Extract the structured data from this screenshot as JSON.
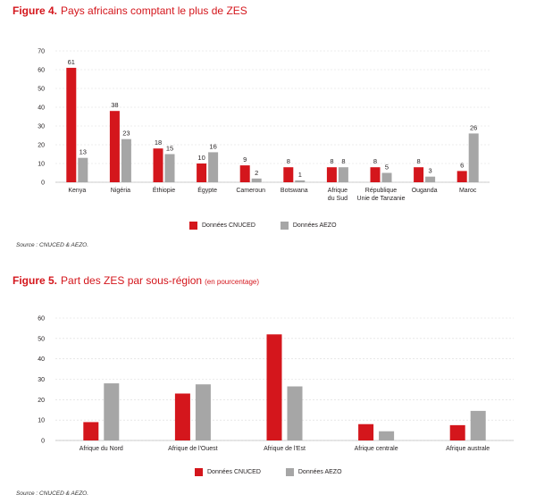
{
  "figure4": {
    "number": "Figure 4.",
    "title": "Pays africains comptant le plus de ZES",
    "source": "Source : CNUCED & AEZO."
  },
  "figure5": {
    "number": "Figure 5.",
    "title": "Part des ZES par sous-région",
    "subtitle": "(en pourcentage)",
    "source": "Source : CNUCED & AEZO."
  },
  "colors": {
    "unctad": "#d4161c",
    "aezo": "#a6a6a6",
    "grid": "#d9d9d9",
    "accent": "#d4161c"
  },
  "chart_data": [
    {
      "type": "bar",
      "title": "Pays africains comptant le plus de ZES",
      "categories": [
        [
          "Kenya"
        ],
        [
          "Nigéria"
        ],
        [
          "Éthiopie"
        ],
        [
          "Égypte"
        ],
        [
          "Cameroun"
        ],
        [
          "Botswana"
        ],
        [
          "Afrique",
          "du Sud"
        ],
        [
          "République",
          "Unie de Tanzanie"
        ],
        [
          "Ouganda"
        ],
        [
          "Maroc"
        ]
      ],
      "series": [
        {
          "name": "Données CNUCED",
          "values": [
            61,
            38,
            18,
            10,
            9,
            8,
            8,
            8,
            8,
            6
          ]
        },
        {
          "name": "Données AEZO",
          "values": [
            13,
            23,
            15,
            16,
            2,
            1,
            8,
            5,
            3,
            26
          ]
        }
      ],
      "ylim": [
        0,
        70
      ],
      "yticks": [
        0,
        10,
        20,
        30,
        40,
        50,
        60,
        70
      ],
      "data_labels": true,
      "grid": true,
      "legend": "bottom"
    },
    {
      "type": "bar",
      "title": "Part des ZES par sous-région",
      "categories": [
        [
          "Afrique du Nord"
        ],
        [
          "Afrique de l'Ouest"
        ],
        [
          "Afrique de l'Est"
        ],
        [
          "Afrique centrale"
        ],
        [
          "Afrique australe"
        ]
      ],
      "series": [
        {
          "name": "Données CNUCED",
          "values": [
            9,
            23,
            52,
            8,
            7.5
          ]
        },
        {
          "name": "Données AEZO",
          "values": [
            28,
            27.5,
            26.5,
            4.5,
            14.5
          ]
        }
      ],
      "ylim": [
        0,
        60
      ],
      "yticks": [
        0,
        10,
        20,
        30,
        40,
        50,
        60
      ],
      "data_labels": false,
      "grid": true,
      "legend": "bottom"
    }
  ]
}
